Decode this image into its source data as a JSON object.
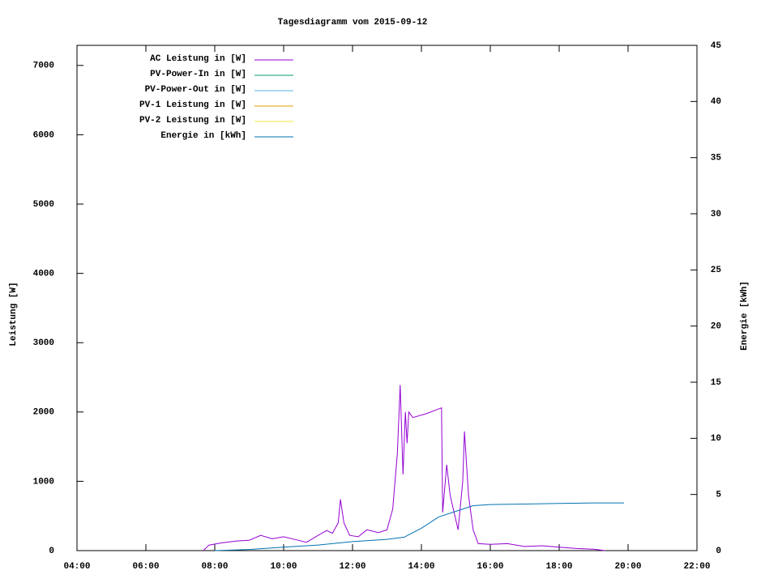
{
  "chart_data": {
    "type": "line",
    "title": "Tagesdiagramm vom 2015-09-12",
    "y_label": "Leistung [W]",
    "y2_label": "Energie [kWh]",
    "xlim": [
      "04:00",
      "22:00"
    ],
    "xticks": [
      "04:00",
      "06:00",
      "08:00",
      "10:00",
      "12:00",
      "14:00",
      "16:00",
      "18:00",
      "20:00",
      "22:00"
    ],
    "ylim": [
      0,
      7290
    ],
    "yticks": [
      0,
      1000,
      2000,
      3000,
      4000,
      5000,
      6000,
      7000
    ],
    "y2lim": [
      0,
      45
    ],
    "y2ticks": [
      0,
      5,
      10,
      15,
      20,
      25,
      30,
      35,
      40,
      45
    ],
    "legend": "top-left",
    "series": [
      {
        "name": "AC Leistung in [W]",
        "color": "#9400d3",
        "x": [
          "07:40",
          "07:50",
          "08:10",
          "08:40",
          "09:00",
          "09:20",
          "09:40",
          "10:00",
          "10:20",
          "10:40",
          "11:00",
          "11:15",
          "11:25",
          "11:35",
          "11:39",
          "11:45",
          "11:55",
          "12:10",
          "12:25",
          "12:45",
          "13:00",
          "13:10",
          "13:18",
          "13:23",
          "13:28",
          "13:32",
          "13:35",
          "13:38",
          "13:45",
          "14:10",
          "14:35",
          "14:37",
          "14:44",
          "14:50",
          "15:04",
          "15:12",
          "15:15",
          "15:22",
          "15:30",
          "15:39",
          "16:00",
          "16:30",
          "17:00",
          "17:30",
          "18:00",
          "18:30",
          "19:00",
          "19:20"
        ],
        "values": [
          0,
          80,
          110,
          140,
          150,
          220,
          170,
          200,
          160,
          120,
          220,
          290,
          250,
          400,
          740,
          400,
          220,
          200,
          300,
          260,
          300,
          600,
          1400,
          2390,
          1100,
          2000,
          1550,
          2000,
          1920,
          1980,
          2060,
          550,
          1240,
          800,
          300,
          1000,
          1720,
          800,
          300,
          100,
          90,
          100,
          60,
          70,
          50,
          30,
          20,
          0
        ]
      },
      {
        "name": "PV-Power-In in [W]",
        "color": "#009e73",
        "x": [],
        "values": []
      },
      {
        "name": "PV-Power-Out in [W]",
        "color": "#56b4e9",
        "x": [],
        "values": []
      },
      {
        "name": "PV-1 Leistung in [W]",
        "color": "#e69f00",
        "x": [],
        "values": []
      },
      {
        "name": "PV-2 Leistung in [W]",
        "color": "#f0e442",
        "x": [],
        "values": []
      },
      {
        "name": "Energie in [kWh]",
        "color": "#0072b2",
        "axis": "y2",
        "x": [
          "08:00",
          "09:00",
          "10:00",
          "11:00",
          "12:00",
          "13:00",
          "13:30",
          "14:00",
          "14:30",
          "15:00",
          "15:30",
          "16:00",
          "17:00",
          "18:00",
          "19:00",
          "19:53"
        ],
        "values": [
          0,
          0.1,
          0.3,
          0.5,
          0.8,
          1.0,
          1.2,
          2.0,
          3.0,
          3.5,
          4.0,
          4.1,
          4.15,
          4.2,
          4.25,
          4.25
        ]
      }
    ]
  }
}
